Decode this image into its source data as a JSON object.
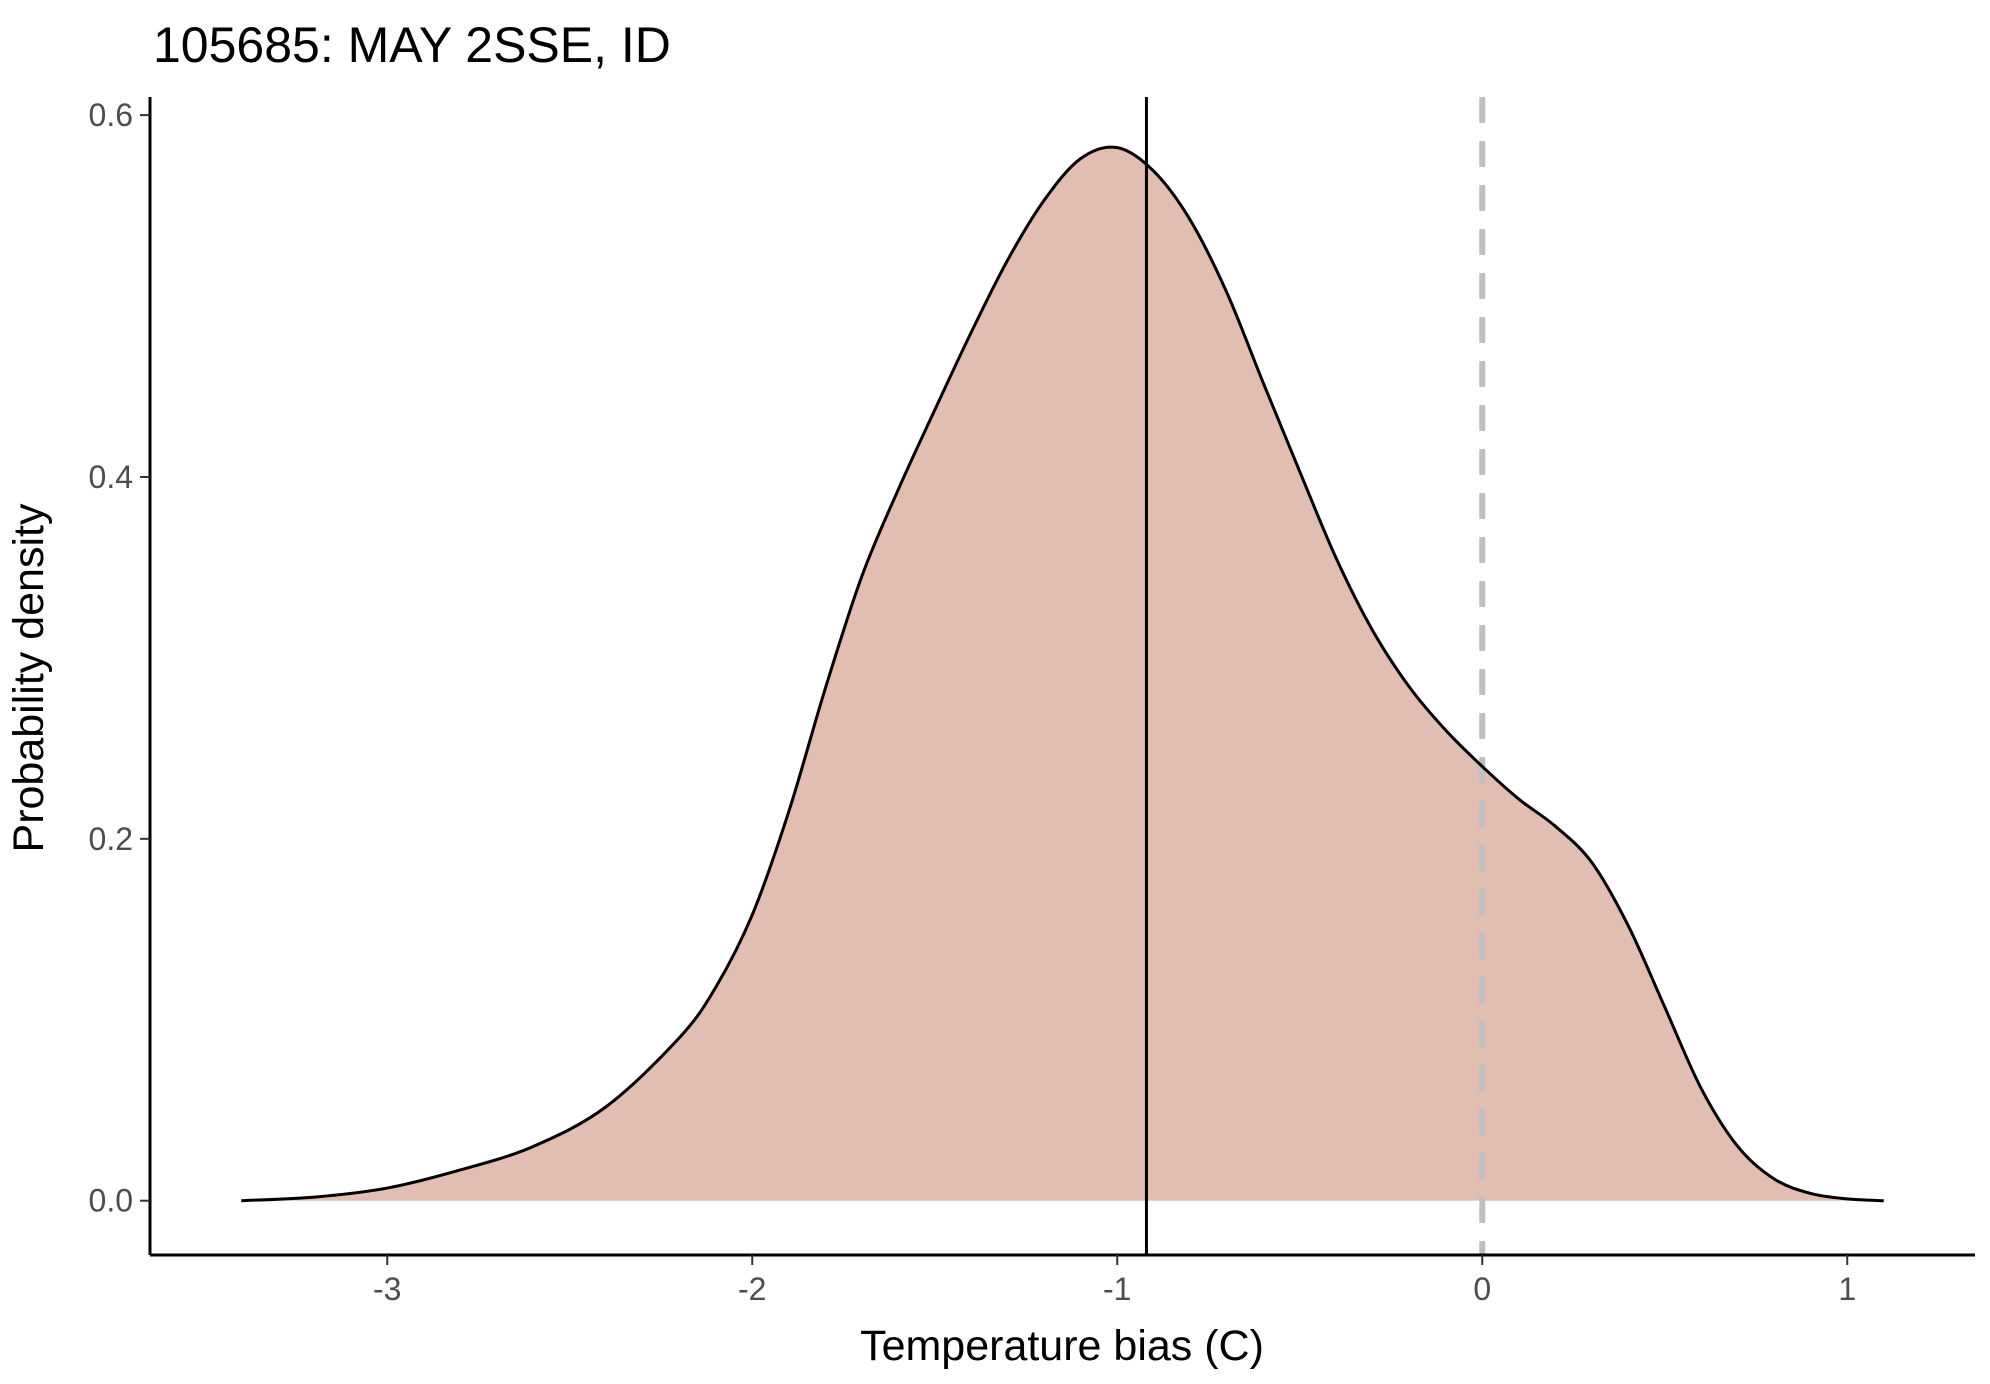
{
  "chart_data": {
    "type": "area",
    "title": "105685: MAY 2SSE, ID",
    "xlabel": "Temperature bias (C)",
    "ylabel": "Probability density",
    "xlim": [
      -3.65,
      1.35
    ],
    "ylim": [
      -0.03,
      0.61
    ],
    "x_ticks": [
      -3,
      -2,
      -1,
      0,
      1
    ],
    "x_tick_labels": [
      "-3",
      "-2",
      "-1",
      "0",
      "1"
    ],
    "y_ticks": [
      0.0,
      0.2,
      0.4,
      0.6
    ],
    "y_tick_labels": [
      "0.0",
      "0.2",
      "0.4",
      "0.6"
    ],
    "grid": false,
    "legend": "none",
    "fill_color": "#e2bdb2",
    "line_color": "#000000",
    "reference_lines": [
      {
        "x": -0.92,
        "style": "solid",
        "color": "#000000"
      },
      {
        "x": 0.0,
        "style": "dashed",
        "color": "#bfbfbf"
      }
    ],
    "series": [
      {
        "x": [
          -3.4,
          -3.2,
          -3.0,
          -2.8,
          -2.6,
          -2.4,
          -2.2,
          -2.1,
          -2.0,
          -1.9,
          -1.8,
          -1.7,
          -1.6,
          -1.5,
          -1.4,
          -1.3,
          -1.2,
          -1.1,
          -1.0,
          -0.9,
          -0.8,
          -0.7,
          -0.6,
          -0.5,
          -0.4,
          -0.3,
          -0.2,
          -0.1,
          0.0,
          0.1,
          0.2,
          0.3,
          0.4,
          0.5,
          0.6,
          0.7,
          0.8,
          0.9,
          1.0,
          1.1
        ],
        "values": [
          0.0,
          0.002,
          0.007,
          0.017,
          0.03,
          0.052,
          0.09,
          0.118,
          0.158,
          0.215,
          0.283,
          0.345,
          0.393,
          0.437,
          0.48,
          0.52,
          0.553,
          0.576,
          0.582,
          0.569,
          0.542,
          0.502,
          0.452,
          0.403,
          0.355,
          0.315,
          0.284,
          0.26,
          0.24,
          0.222,
          0.207,
          0.187,
          0.152,
          0.107,
          0.062,
          0.03,
          0.012,
          0.004,
          0.001,
          0.0
        ]
      }
    ]
  }
}
